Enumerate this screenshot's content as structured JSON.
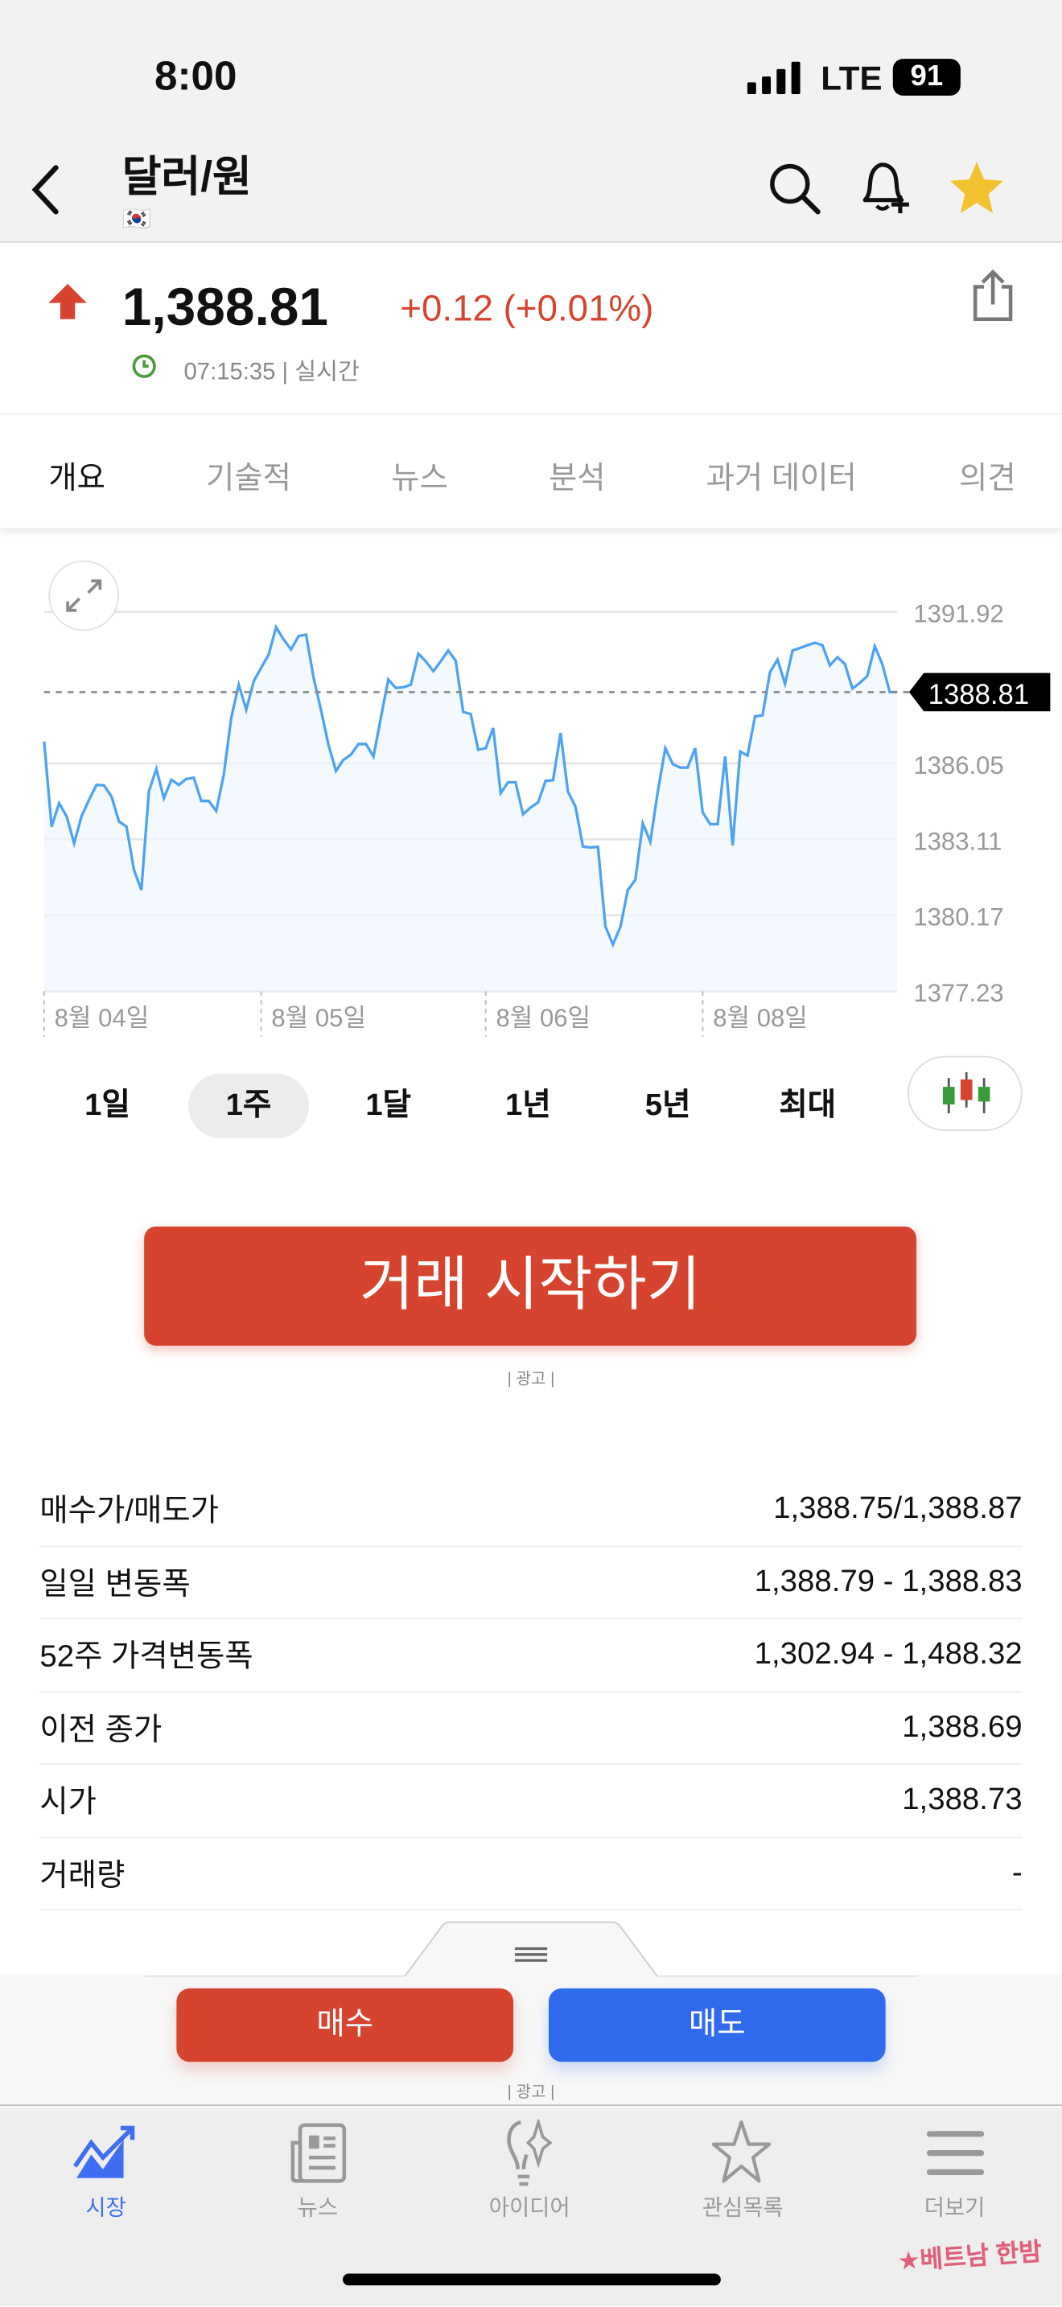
{
  "status": {
    "time": "8:00",
    "network": "LTE",
    "battery": "91"
  },
  "header": {
    "title": "달러/원",
    "flag": "🇰🇷",
    "icons": [
      "back-chevron-icon",
      "search-icon",
      "bell-plus-icon",
      "star-icon"
    ],
    "star_color": "#f2c230"
  },
  "quote": {
    "price": "1,388.81",
    "change": "+0.12 (+0.01%)",
    "direction": "up",
    "time": "07:15:35 | 실시간",
    "up_color": "#d6432f"
  },
  "tabs": [
    {
      "label": "개요",
      "active": true
    },
    {
      "label": "기술적"
    },
    {
      "label": "뉴스"
    },
    {
      "label": "분석"
    },
    {
      "label": "과거 데이터"
    },
    {
      "label": "의견"
    }
  ],
  "chart_data": {
    "type": "area",
    "y_ticks": [
      "1391.92",
      "1386.05",
      "1383.11",
      "1380.17",
      "1377.23"
    ],
    "ylim": [
      1377.23,
      1391.92
    ],
    "grid": true,
    "current_label": "1388.81",
    "current_value": 1388.81,
    "x_ticks": [
      {
        "label": "8월 04일",
        "index": 0
      },
      {
        "label": "8월 05일",
        "index": 29
      },
      {
        "label": "8월 06일",
        "index": 59
      },
      {
        "label": "8월 08일",
        "index": 88
      }
    ],
    "line_color": "#4da3f2",
    "values": [
      1386.9,
      1383.6,
      1384.51,
      1384.0,
      1382.96,
      1384.0,
      1384.64,
      1385.22,
      1385.2,
      1384.77,
      1383.8,
      1383.6,
      1381.92,
      1381.15,
      1384.96,
      1385.84,
      1384.7,
      1385.42,
      1385.22,
      1385.45,
      1385.5,
      1384.6,
      1384.6,
      1384.21,
      1385.6,
      1387.81,
      1389.1,
      1388.13,
      1389.23,
      1389.75,
      1390.26,
      1391.32,
      1390.85,
      1390.46,
      1390.98,
      1391.04,
      1389.36,
      1388.13,
      1386.77,
      1385.76,
      1386.19,
      1386.39,
      1386.8,
      1386.8,
      1386.32,
      1387.81,
      1389.3,
      1388.97,
      1389.0,
      1389.1,
      1390.3,
      1390.0,
      1389.62,
      1390.0,
      1390.42,
      1390.03,
      1388.04,
      1387.96,
      1386.58,
      1386.64,
      1387.42,
      1384.9,
      1385.32,
      1385.32,
      1384.08,
      1384.34,
      1384.54,
      1385.37,
      1385.4,
      1387.23,
      1384.96,
      1384.38,
      1382.83,
      1382.79,
      1382.82,
      1379.73,
      1379.04,
      1379.73,
      1381.15,
      1381.54,
      1383.73,
      1383.02,
      1384.96,
      1386.64,
      1386.02,
      1385.89,
      1385.89,
      1386.64,
      1384.16,
      1383.7,
      1383.7,
      1386.32,
      1382.87,
      1386.51,
      1386.36,
      1387.87,
      1387.91,
      1389.59,
      1390.07,
      1389.13,
      1390.42,
      1390.52,
      1390.63,
      1390.72,
      1390.63,
      1389.85,
      1390.16,
      1389.9,
      1388.95,
      1389.17,
      1389.43,
      1390.59,
      1389.9,
      1388.81,
      1388.81
    ]
  },
  "ranges": [
    {
      "label": "1일"
    },
    {
      "label": "1주",
      "active": true
    },
    {
      "label": "1달"
    },
    {
      "label": "1년"
    },
    {
      "label": "5년"
    },
    {
      "label": "최대"
    }
  ],
  "trade_button": "거래 시작하기",
  "ad_label": "| 광고 |",
  "stats": [
    {
      "label": "매수가/매도가",
      "value": "1,388.75/1,388.87"
    },
    {
      "label": "일일 변동폭",
      "value": "1,388.79 - 1,388.83"
    },
    {
      "label": "52주 가격변동폭",
      "value": "1,302.94 - 1,488.32"
    },
    {
      "label": "이전 종가",
      "value": "1,388.69"
    },
    {
      "label": "시가",
      "value": "1,388.73"
    },
    {
      "label": "거래량",
      "value": "-"
    }
  ],
  "buy": "매수",
  "sell": "매도",
  "buy_color": "#d6432f",
  "sell_color": "#2f6bec",
  "nav": [
    {
      "label": "시장",
      "active": true,
      "icon": "chart-up-icon"
    },
    {
      "label": "뉴스",
      "icon": "newspaper-icon"
    },
    {
      "label": "아이디어",
      "icon": "lightbulb-icon"
    },
    {
      "label": "관심목록",
      "icon": "star-outline-icon"
    },
    {
      "label": "더보기",
      "icon": "menu-icon"
    }
  ],
  "watermark": "베트남 한밤"
}
